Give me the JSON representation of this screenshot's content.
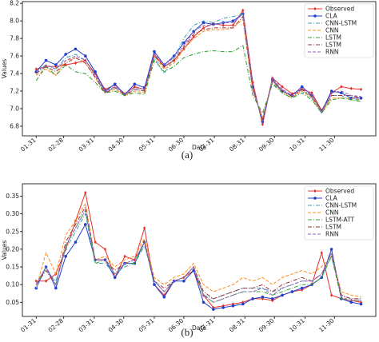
{
  "chart_data": [
    {
      "type": "line",
      "caption": "(a)",
      "xlabel": "Date",
      "ylabel": "Values",
      "legend": "upper right",
      "grid": false,
      "x": [
        31,
        41,
        51,
        61,
        71,
        81,
        91,
        101,
        111,
        121,
        131,
        141,
        151,
        161,
        171,
        181,
        191,
        201,
        211,
        221,
        231,
        241,
        251,
        261,
        271,
        281,
        291,
        301,
        311,
        321,
        331,
        341,
        351,
        361
      ],
      "xlim": [
        17,
        376
      ],
      "xticks": [
        {
          "value": 31,
          "label": "01-31"
        },
        {
          "value": 59,
          "label": "02-28"
        },
        {
          "value": 90,
          "label": "03-31"
        },
        {
          "value": 120,
          "label": "04-30"
        },
        {
          "value": 151,
          "label": "05-31"
        },
        {
          "value": 181,
          "label": "06-30"
        },
        {
          "value": 212,
          "label": "07-31"
        },
        {
          "value": 243,
          "label": "08-31"
        },
        {
          "value": 273,
          "label": "09-30"
        },
        {
          "value": 304,
          "label": "10-31"
        },
        {
          "value": 334,
          "label": "11-30"
        }
      ],
      "ylim": [
        6.69,
        8.22
      ],
      "yticks": [
        6.8,
        {
          "value": 7,
          "label": "7.0"
        },
        7.2,
        7.4,
        7.6,
        7.8,
        {
          "value": 8,
          "label": "8.0"
        },
        8.2
      ],
      "series": [
        {
          "name": "Observed",
          "color": "#e8302a",
          "dash": "solid",
          "marker": "diamond",
          "values": [
            7.45,
            7.48,
            7.48,
            7.5,
            7.52,
            7.55,
            7.4,
            7.22,
            7.27,
            7.17,
            7.25,
            7.22,
            7.62,
            7.48,
            7.55,
            7.68,
            7.82,
            7.92,
            7.97,
            7.95,
            7.95,
            8.12,
            7.3,
            6.82,
            7.35,
            7.25,
            7.17,
            7.22,
            7.18,
            6.98,
            7.18,
            7.25,
            7.23,
            7.22
          ]
        },
        {
          "name": "CLA",
          "color": "#1f3fd0",
          "dash": "solid",
          "marker": "circle",
          "values": [
            7.42,
            7.55,
            7.5,
            7.62,
            7.68,
            7.6,
            7.42,
            7.2,
            7.28,
            7.16,
            7.28,
            7.24,
            7.65,
            7.5,
            7.6,
            7.75,
            7.88,
            7.98,
            7.96,
            7.98,
            8.0,
            8.08,
            7.25,
            6.85,
            7.33,
            7.2,
            7.15,
            7.25,
            7.15,
            6.97,
            7.2,
            7.18,
            7.12,
            7.12
          ]
        },
        {
          "name": "CNN-LSTM",
          "color": "#3a9fb5",
          "dash": "dashdot",
          "marker": "none",
          "values": [
            7.4,
            7.5,
            7.45,
            7.58,
            7.62,
            7.55,
            7.38,
            7.18,
            7.25,
            7.15,
            7.22,
            7.2,
            7.58,
            7.4,
            7.58,
            7.8,
            7.95,
            8.0,
            7.98,
            8.03,
            8.05,
            8.08,
            7.22,
            6.88,
            7.3,
            7.18,
            7.12,
            7.22,
            7.12,
            6.95,
            7.15,
            7.15,
            7.1,
            7.1
          ]
        },
        {
          "name": "CNN",
          "color": "#ff8c1a",
          "dash": "dashed",
          "marker": "none",
          "values": [
            7.38,
            7.45,
            7.38,
            7.55,
            7.58,
            7.52,
            7.35,
            7.18,
            7.22,
            7.15,
            7.2,
            7.18,
            7.6,
            7.45,
            7.52,
            7.68,
            7.8,
            7.88,
            7.9,
            7.9,
            7.92,
            8.02,
            7.2,
            6.9,
            7.32,
            7.18,
            7.13,
            7.2,
            7.12,
            6.96,
            7.12,
            7.12,
            7.12,
            7.1
          ]
        },
        {
          "name": "LSTM",
          "color": "#2ca02c",
          "dash": "dashdot",
          "marker": "none",
          "values": [
            7.32,
            7.48,
            7.38,
            7.5,
            7.42,
            7.4,
            7.3,
            7.18,
            7.2,
            7.15,
            7.18,
            7.16,
            7.55,
            7.42,
            7.48,
            7.58,
            7.62,
            7.65,
            7.66,
            7.65,
            7.65,
            7.72,
            7.15,
            6.95,
            7.28,
            7.18,
            7.12,
            7.18,
            7.1,
            6.95,
            7.1,
            7.12,
            7.1,
            7.08
          ]
        },
        {
          "name": "LSTM",
          "color": "#a0303a",
          "dash": "dashdot",
          "marker": "none",
          "values": [
            7.4,
            7.48,
            7.42,
            7.52,
            7.58,
            7.52,
            7.36,
            7.18,
            7.24,
            7.16,
            7.22,
            7.2,
            7.6,
            7.48,
            7.55,
            7.7,
            7.85,
            7.9,
            7.92,
            7.92,
            7.92,
            8.05,
            7.22,
            6.88,
            7.32,
            7.2,
            7.14,
            7.22,
            7.14,
            6.97,
            7.15,
            7.15,
            7.15,
            7.12
          ]
        },
        {
          "name": "RNN",
          "color": "#9467bd",
          "dash": "dashed",
          "marker": "none",
          "values": [
            7.42,
            7.5,
            7.45,
            7.55,
            7.6,
            7.55,
            7.38,
            7.2,
            7.25,
            7.17,
            7.24,
            7.22,
            7.62,
            7.5,
            7.58,
            7.72,
            7.88,
            7.95,
            7.95,
            7.98,
            7.98,
            8.08,
            7.25,
            6.85,
            7.35,
            7.22,
            7.15,
            7.24,
            7.16,
            6.96,
            7.18,
            7.2,
            7.15,
            7.14
          ]
        }
      ]
    },
    {
      "type": "line",
      "caption": "(b)",
      "xlabel": "Date",
      "ylabel": "Values",
      "legend": "upper right",
      "grid": false,
      "x": [
        31,
        41,
        51,
        61,
        71,
        81,
        91,
        101,
        111,
        121,
        131,
        141,
        151,
        161,
        171,
        181,
        191,
        201,
        211,
        221,
        231,
        241,
        251,
        261,
        271,
        281,
        291,
        301,
        311,
        321,
        331,
        341,
        351,
        361
      ],
      "xlim": [
        17,
        376
      ],
      "xticks": [
        {
          "value": 31,
          "label": "01-31"
        },
        {
          "value": 59,
          "label": "02-28"
        },
        {
          "value": 90,
          "label": "03-31"
        },
        {
          "value": 120,
          "label": "04-30"
        },
        {
          "value": 151,
          "label": "05-31"
        },
        {
          "value": 181,
          "label": "06-30"
        },
        {
          "value": 212,
          "label": "07-31"
        },
        {
          "value": 243,
          "label": "08-31"
        },
        {
          "value": 273,
          "label": "09-30"
        },
        {
          "value": 304,
          "label": "10-31"
        },
        {
          "value": 334,
          "label": "11-30"
        }
      ],
      "ylim": [
        0.01,
        0.385
      ],
      "yticks": [
        0.05,
        {
          "value": 0.1,
          "label": "0.10"
        },
        0.15,
        {
          "value": 0.2,
          "label": "0.20"
        },
        0.25,
        {
          "value": 0.3,
          "label": "0.30"
        },
        0.35
      ],
      "series": [
        {
          "name": "Observed",
          "color": "#e8302a",
          "dash": "solid",
          "marker": "diamond",
          "values": [
            0.11,
            0.11,
            0.13,
            0.2,
            0.28,
            0.36,
            0.22,
            0.2,
            0.12,
            0.18,
            0.17,
            0.26,
            0.1,
            0.07,
            0.11,
            0.12,
            0.14,
            0.07,
            0.035,
            0.04,
            0.045,
            0.05,
            0.06,
            0.06,
            0.055,
            0.07,
            0.08,
            0.085,
            0.1,
            0.19,
            0.07,
            0.06,
            0.055,
            0.05
          ]
        },
        {
          "name": "CLA",
          "color": "#1f3fd0",
          "dash": "solid",
          "marker": "circle",
          "values": [
            0.09,
            0.15,
            0.09,
            0.18,
            0.22,
            0.27,
            0.17,
            0.17,
            0.12,
            0.16,
            0.16,
            0.22,
            0.1,
            0.065,
            0.11,
            0.11,
            0.14,
            0.05,
            0.03,
            0.035,
            0.04,
            0.045,
            0.06,
            0.065,
            0.06,
            0.07,
            0.08,
            0.09,
            0.1,
            0.12,
            0.2,
            0.06,
            0.05,
            0.045
          ]
        },
        {
          "name": "CNN-LSTM",
          "color": "#3a9fb5",
          "dash": "dashdot",
          "marker": "none",
          "values": [
            0.1,
            0.14,
            0.11,
            0.2,
            0.25,
            0.3,
            0.16,
            0.16,
            0.13,
            0.15,
            0.16,
            0.21,
            0.11,
            0.08,
            0.11,
            0.12,
            0.15,
            0.07,
            0.06,
            0.07,
            0.08,
            0.09,
            0.09,
            0.09,
            0.08,
            0.09,
            0.1,
            0.11,
            0.11,
            0.13,
            0.18,
            0.07,
            0.06,
            0.06
          ]
        },
        {
          "name": "CNN",
          "color": "#ff8c1a",
          "dash": "dashed",
          "marker": "none",
          "values": [
            0.09,
            0.19,
            0.13,
            0.24,
            0.28,
            0.33,
            0.17,
            0.18,
            0.15,
            0.17,
            0.18,
            0.23,
            0.12,
            0.1,
            0.12,
            0.13,
            0.16,
            0.1,
            0.08,
            0.09,
            0.1,
            0.12,
            0.11,
            0.12,
            0.1,
            0.12,
            0.13,
            0.14,
            0.13,
            0.15,
            0.18,
            0.08,
            0.07,
            0.065
          ]
        },
        {
          "name": "LSTM-ATT",
          "color": "#2ca02c",
          "dash": "dashdot",
          "marker": "none",
          "values": [
            0.1,
            0.15,
            0.1,
            0.21,
            0.26,
            0.31,
            0.16,
            0.17,
            0.13,
            0.16,
            0.16,
            0.22,
            0.11,
            0.08,
            0.11,
            0.12,
            0.15,
            0.07,
            0.05,
            0.06,
            0.07,
            0.08,
            0.08,
            0.08,
            0.07,
            0.08,
            0.09,
            0.1,
            0.1,
            0.12,
            0.18,
            0.06,
            0.055,
            0.055
          ]
        },
        {
          "name": "LSTM",
          "color": "#a0303a",
          "dash": "dashdot",
          "marker": "none",
          "values": [
            0.1,
            0.14,
            0.1,
            0.22,
            0.27,
            0.32,
            0.17,
            0.17,
            0.14,
            0.16,
            0.17,
            0.22,
            0.11,
            0.09,
            0.11,
            0.12,
            0.15,
            0.08,
            0.06,
            0.07,
            0.08,
            0.09,
            0.09,
            0.1,
            0.08,
            0.1,
            0.11,
            0.12,
            0.11,
            0.13,
            0.19,
            0.07,
            0.06,
            0.06
          ]
        },
        {
          "name": "RNN",
          "color": "#9467bd",
          "dash": "dashed",
          "marker": "none",
          "values": [
            0.1,
            0.15,
            0.1,
            0.21,
            0.26,
            0.31,
            0.17,
            0.17,
            0.13,
            0.16,
            0.17,
            0.22,
            0.11,
            0.08,
            0.11,
            0.12,
            0.15,
            0.07,
            0.05,
            0.06,
            0.07,
            0.08,
            0.08,
            0.09,
            0.07,
            0.09,
            0.1,
            0.11,
            0.11,
            0.13,
            0.19,
            0.065,
            0.055,
            0.055
          ]
        }
      ]
    }
  ]
}
